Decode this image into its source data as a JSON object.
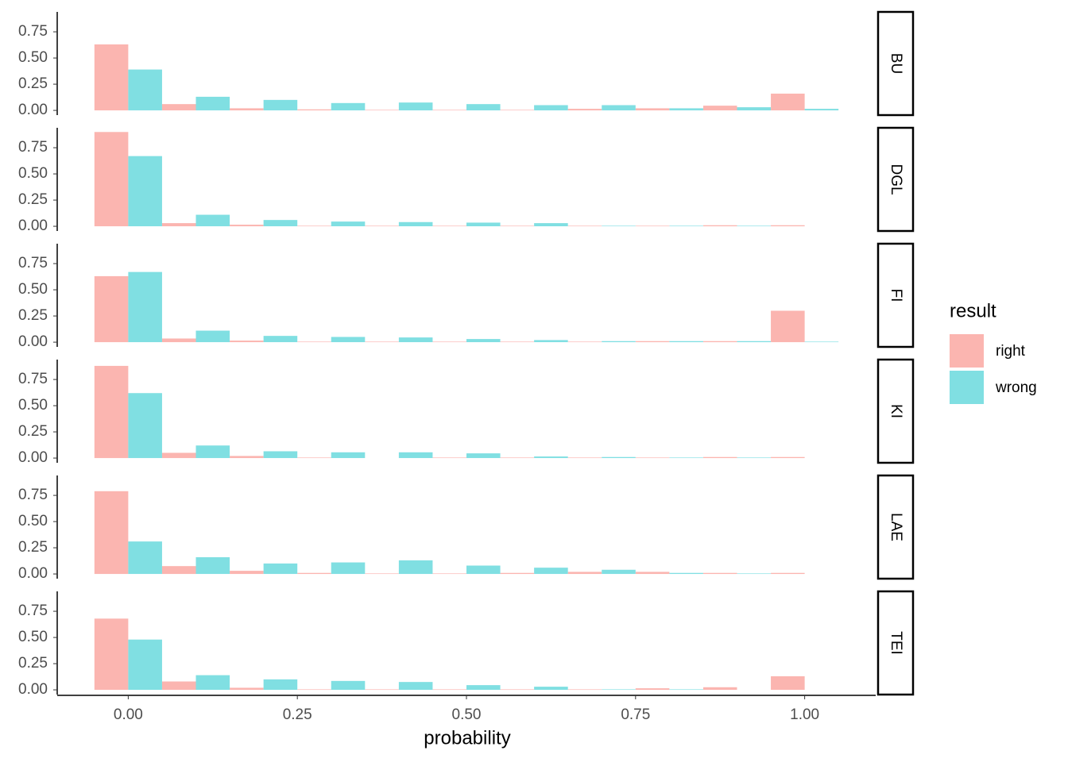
{
  "chart_data": {
    "type": "bar",
    "facets": [
      "BU",
      "DGL",
      "FI",
      "KI",
      "LAE",
      "TEI"
    ],
    "x": [
      0,
      0.1,
      0.2,
      0.3,
      0.4,
      0.5,
      0.6,
      0.7,
      0.8,
      0.9,
      1.0
    ],
    "xlim": [
      -0.105,
      1.105
    ],
    "xticks": [
      {
        "value": 0,
        "label": "0.00"
      },
      {
        "value": 0.25,
        "label": "0.25"
      },
      {
        "value": 0.5,
        "label": "0.50"
      },
      {
        "value": 0.75,
        "label": "0.75"
      },
      {
        "value": 1,
        "label": "1.00"
      }
    ],
    "ylim": [
      -0.045,
      0.94
    ],
    "yticks": [
      {
        "value": 0,
        "label": "0.00"
      },
      {
        "value": 0.25,
        "label": "0.25"
      },
      {
        "value": 0.5,
        "label": "0.50"
      },
      {
        "value": 0.75,
        "label": "0.75"
      }
    ],
    "x_label": "probability",
    "legend_title": "result",
    "series": [
      {
        "name": "right",
        "color": "#fbb5b0",
        "values": [
          [
            0.63,
            0.06,
            0.02,
            0.01,
            0.005,
            0.005,
            0.005,
            0.015,
            0.02,
            0.045,
            0.16
          ],
          [
            0.9,
            0.03,
            0.015,
            0.005,
            0.005,
            0.005,
            0.005,
            0.005,
            0.005,
            0.01,
            0.01
          ],
          [
            0.63,
            0.035,
            0.015,
            0.005,
            0.005,
            0.005,
            0.005,
            0.005,
            0.01,
            0.01,
            0.3
          ],
          [
            0.88,
            0.05,
            0.02,
            0.005,
            0,
            0.005,
            0.005,
            0.005,
            0.005,
            0.01,
            0.01
          ],
          [
            0.79,
            0.075,
            0.03,
            0.01,
            0.005,
            0.005,
            0.01,
            0.02,
            0.02,
            0.01,
            0.01
          ],
          [
            0.68,
            0.08,
            0.02,
            0.005,
            0.005,
            0.005,
            0.005,
            0.005,
            0.015,
            0.025,
            0.13
          ]
        ]
      },
      {
        "name": "wrong",
        "color": "#80dfe2",
        "values": [
          [
            0.39,
            0.13,
            0.1,
            0.07,
            0.075,
            0.06,
            0.05,
            0.05,
            0.02,
            0.03,
            0.015
          ],
          [
            0.67,
            0.11,
            0.06,
            0.045,
            0.04,
            0.035,
            0.03,
            0.005,
            0.005,
            0.005,
            0
          ],
          [
            0.67,
            0.11,
            0.06,
            0.05,
            0.045,
            0.03,
            0.02,
            0.01,
            0.01,
            0.01,
            0.005
          ],
          [
            0.62,
            0.12,
            0.065,
            0.055,
            0.055,
            0.045,
            0.015,
            0.01,
            0.005,
            0.005,
            0
          ],
          [
            0.31,
            0.16,
            0.1,
            0.11,
            0.13,
            0.08,
            0.06,
            0.04,
            0.01,
            0.005,
            0
          ],
          [
            0.48,
            0.14,
            0.1,
            0.085,
            0.075,
            0.045,
            0.03,
            0.005,
            0.005,
            0,
            0
          ]
        ]
      }
    ]
  }
}
